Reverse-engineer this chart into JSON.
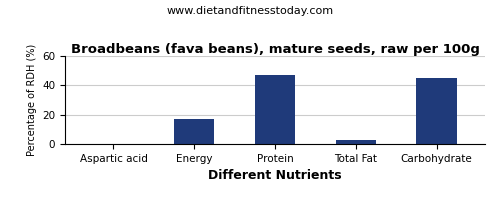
{
  "title": "Broadbeans (fava beans), mature seeds, raw per 100g",
  "subtitle": "www.dietandfitnesstoday.com",
  "xlabel": "Different Nutrients",
  "ylabel": "Percentage of RDH (%)",
  "categories": [
    "Aspartic acid",
    "Energy",
    "Protein",
    "Total Fat",
    "Carbohydrate"
  ],
  "values": [
    0,
    17,
    47,
    2.5,
    45
  ],
  "bar_color": "#1F3A7A",
  "ylim": [
    0,
    60
  ],
  "yticks": [
    0,
    20,
    40,
    60
  ],
  "background_color": "#ffffff",
  "grid_color": "#cccccc",
  "title_fontsize": 9.5,
  "subtitle_fontsize": 8,
  "xlabel_fontsize": 9,
  "ylabel_fontsize": 7,
  "tick_fontsize": 7.5
}
